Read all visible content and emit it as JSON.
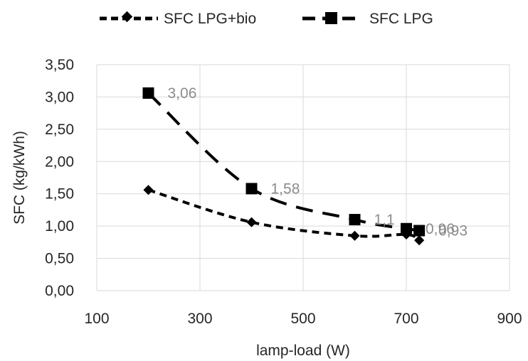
{
  "chart_data": {
    "type": "scatter",
    "title": "",
    "xlabel": "lamp-load (W)",
    "ylabel": "SFC (kg/kWh)",
    "xlim": [
      100,
      900
    ],
    "ylim": [
      0,
      3.5
    ],
    "x_ticks": [
      "100",
      "300",
      "500",
      "700",
      "900"
    ],
    "y_ticks": [
      "0,00",
      "0,50",
      "1,00",
      "1,50",
      "2,00",
      "2,50",
      "3,00",
      "3,50"
    ],
    "grid": true,
    "legend_position": "top",
    "series": [
      {
        "name": "SFC LPG+bio",
        "marker": "diamond",
        "line": "short-dash",
        "color": "#000000",
        "x": [
          200,
          400,
          600,
          700,
          725
        ],
        "y": [
          1.56,
          1.06,
          0.85,
          0.87,
          0.78
        ]
      },
      {
        "name": "SFC LPG",
        "marker": "square",
        "line": "long-dash",
        "color": "#000000",
        "x": [
          200,
          400,
          600,
          700,
          725
        ],
        "y": [
          3.06,
          1.58,
          1.1,
          0.96,
          0.93
        ],
        "data_labels": [
          "3,06",
          "1,58",
          "1,1",
          "0,96",
          "0,93"
        ]
      }
    ]
  }
}
